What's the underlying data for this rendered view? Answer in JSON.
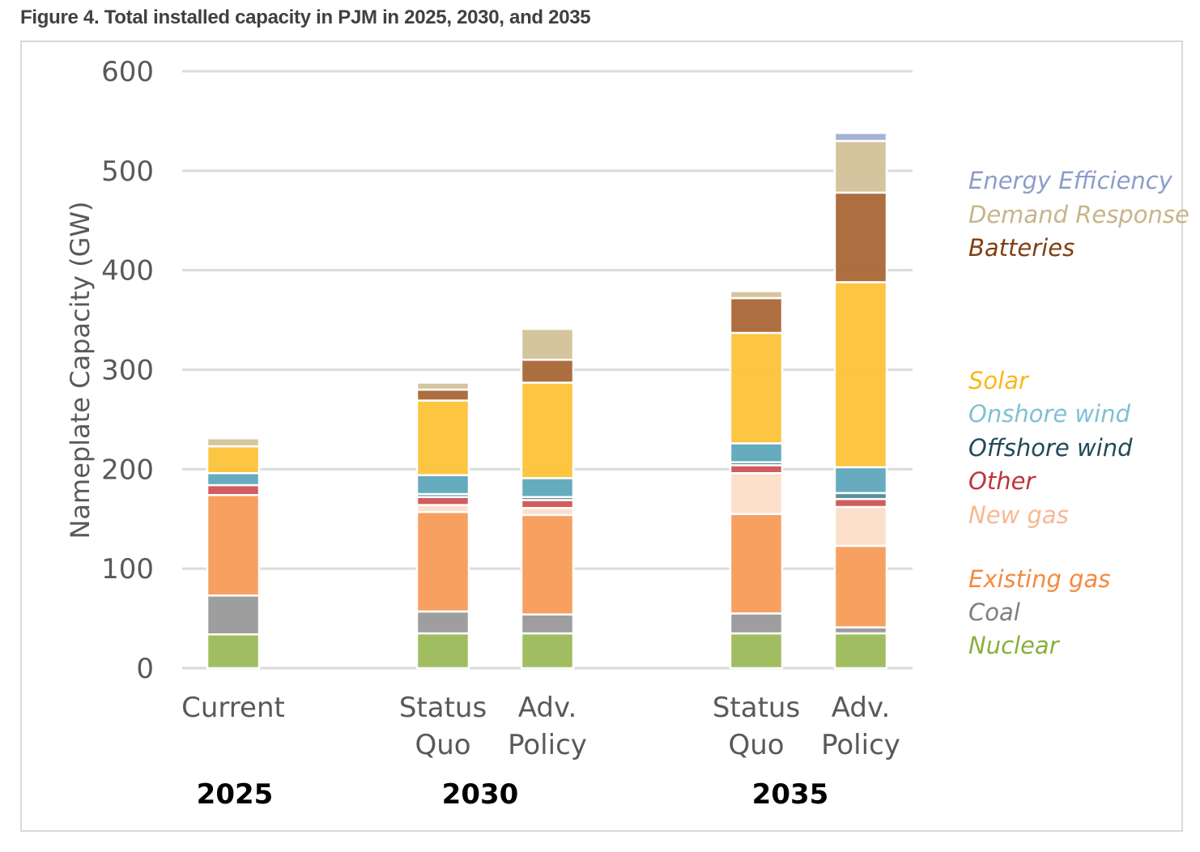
{
  "figure": {
    "title": "Figure 4. Total installed capacity in PJM in 2025, 2030, and 2035"
  },
  "chart_data": {
    "type": "bar",
    "stacked": true,
    "title": "Figure 4. Total installed capacity in PJM in 2025, 2030, and 2035",
    "xlabel": "",
    "ylabel": "Nameplate Capacity (GW)",
    "ylim": [
      0,
      600
    ],
    "yticks": [
      0,
      100,
      200,
      300,
      400,
      500,
      600
    ],
    "ytick_labels": [
      "0",
      "100",
      "200",
      "300",
      "400",
      "500",
      "600"
    ],
    "grid": true,
    "legend_position": "right",
    "categories": [
      {
        "label_lines": [
          "Current"
        ],
        "group": "2025"
      },
      {
        "label_lines": [
          "Status",
          "Quo"
        ],
        "group": "2030"
      },
      {
        "label_lines": [
          "Adv.",
          "Policy"
        ],
        "group": "2030"
      },
      {
        "label_lines": [
          "Status",
          "Quo"
        ],
        "group": "2035"
      },
      {
        "label_lines": [
          "Adv.",
          "Policy"
        ],
        "group": "2035"
      }
    ],
    "groups": [
      "2025",
      "2030",
      "2035"
    ],
    "series": [
      {
        "name": "Nuclear",
        "color": "#9bbb59",
        "values": [
          34,
          35,
          35,
          35,
          35
        ]
      },
      {
        "name": "Coal",
        "color": "#999999",
        "values": [
          39,
          22,
          19,
          20,
          6
        ]
      },
      {
        "name": "Existing gas",
        "color": "#f79b57",
        "values": [
          101,
          100,
          100,
          100,
          82
        ]
      },
      {
        "name": "New gas",
        "color": "#fcdec9",
        "values": [
          0,
          7,
          7,
          41,
          39
        ]
      },
      {
        "name": "Other",
        "color": "#d05457",
        "values": [
          10,
          8,
          8,
          8,
          8
        ]
      },
      {
        "name": "Offshore wind",
        "color": "#4f8a99",
        "values": [
          0,
          3,
          3,
          3,
          6
        ]
      },
      {
        "name": "Onshore wind",
        "color": "#5ea6ba",
        "values": [
          12,
          19,
          19,
          19,
          26
        ]
      },
      {
        "name": "Solar",
        "color": "#fcc238",
        "values": [
          27,
          75,
          96,
          111,
          186
        ]
      },
      {
        "name": "Batteries",
        "color": "#a96636",
        "values": [
          0,
          11,
          23,
          35,
          90
        ]
      },
      {
        "name": "Demand Response",
        "color": "#d3c29a",
        "values": [
          8,
          7,
          31,
          7,
          52
        ]
      },
      {
        "name": "Energy Efficiency",
        "color": "#9eaed3",
        "values": [
          0,
          0,
          0,
          0,
          8
        ]
      }
    ],
    "legend": [
      {
        "name": "Energy Efficiency",
        "color": "#8b9dc9"
      },
      {
        "name": "Demand Response",
        "color": "#c8b48a"
      },
      {
        "name": "Batteries",
        "color": "#7f3f13"
      },
      {
        "name": "Solar",
        "color": "#fbb818"
      },
      {
        "name": "Onshore wind",
        "color": "#7fc1d3"
      },
      {
        "name": "Offshore wind",
        "color": "#214a5a"
      },
      {
        "name": "Other",
        "color": "#c0333b"
      },
      {
        "name": "New gas",
        "color": "#f8b891"
      },
      {
        "name": "Existing gas",
        "color": "#f58a3f"
      },
      {
        "name": "Coal",
        "color": "#7f7f7f"
      },
      {
        "name": "Nuclear",
        "color": "#86b23d"
      }
    ]
  }
}
